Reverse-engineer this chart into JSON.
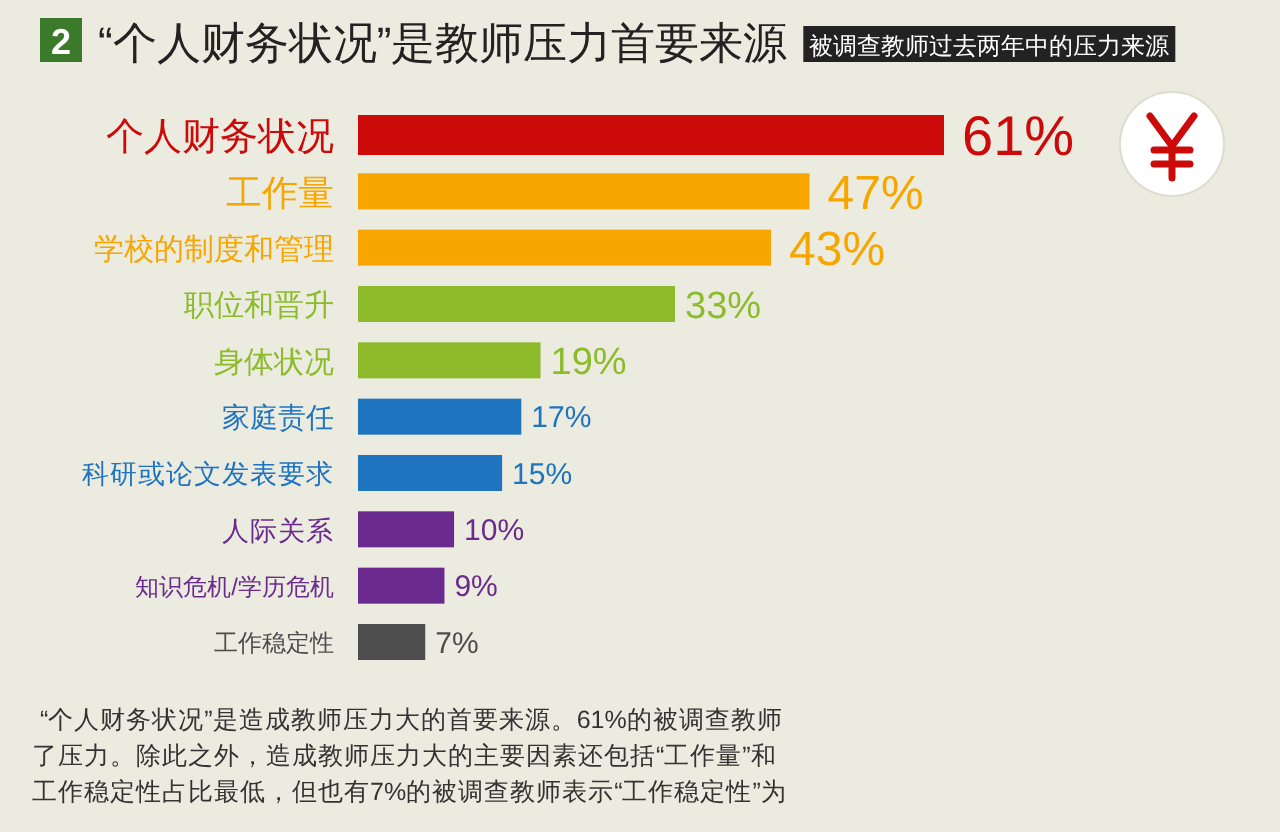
{
  "chart_data": {
    "type": "bar",
    "orientation": "horizontal",
    "title": "“个人财务状况”是教师压力首要来源",
    "subtitle": "被调查教师过去两年中的压力来源",
    "categories": [
      "个人财务状况",
      "工作量",
      "学校的制度和管理",
      "职位和晋升",
      "身体状况",
      "家庭责任",
      "科研或论文发表要求",
      "人际关系",
      "知识危机/学历危机",
      "工作稳定性"
    ],
    "values": [
      61,
      47,
      43,
      33,
      19,
      17,
      15,
      10,
      9,
      7
    ],
    "colors": [
      "#cc0a0a",
      "#f7a600",
      "#f7a600",
      "#8dbb2c",
      "#8dbb2c",
      "#1f74c0",
      "#1f74c0",
      "#6b2a8e",
      "#6b2a8e",
      "#4d4d4d"
    ],
    "value_labels": [
      "61%",
      "47%",
      "43%",
      "33%",
      "19%",
      "17%",
      "15%",
      "10%",
      "9%",
      "7%"
    ],
    "annotations": [
      "2",
      "“个人财务状况”是造成教师压力大的首要来源。61%的被调查教师",
      "了压力。除此之外，造成教师压力大的主要因素还包括“工作量”和",
      "工作稳定性占比最低，但也有7%的被调查教师表示“工作稳定性”为"
    ]
  }
}
